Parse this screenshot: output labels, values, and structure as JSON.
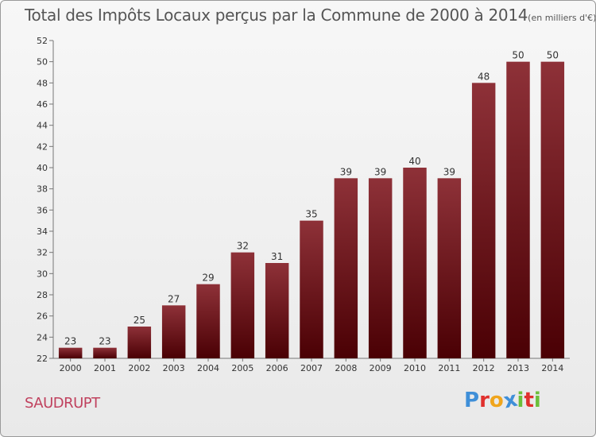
{
  "chart_data": {
    "type": "bar",
    "title": "Total des Impôts Locaux perçus par la Commune de 2000 à 2014",
    "unit_label": "(en milliers d'€)",
    "categories": [
      "2000",
      "2001",
      "2002",
      "2003",
      "2004",
      "2005",
      "2006",
      "2007",
      "2008",
      "2009",
      "2010",
      "2011",
      "2012",
      "2013",
      "2014"
    ],
    "values": [
      23,
      23,
      25,
      27,
      29,
      32,
      31,
      35,
      39,
      39,
      40,
      39,
      48,
      50,
      50
    ],
    "ylim": [
      22,
      52
    ],
    "yticks": [
      22,
      24,
      26,
      28,
      30,
      32,
      34,
      36,
      38,
      40,
      42,
      44,
      46,
      48,
      50,
      52
    ],
    "xlabel": "",
    "ylabel": "",
    "grid": false,
    "bar_color_top": "#8e3138",
    "bar_color_bottom": "#4a0004"
  },
  "footer": {
    "commune": "SAUDRUPT",
    "brand_letters": [
      "P",
      "r",
      "o",
      "x",
      "i",
      "t",
      "i"
    ],
    "brand_colors": [
      "#3f8fd8",
      "#e0302d",
      "#f0a51c",
      "#3f8fd8",
      "#6cbf3a",
      "#e0302d",
      "#6cbf3a"
    ]
  }
}
